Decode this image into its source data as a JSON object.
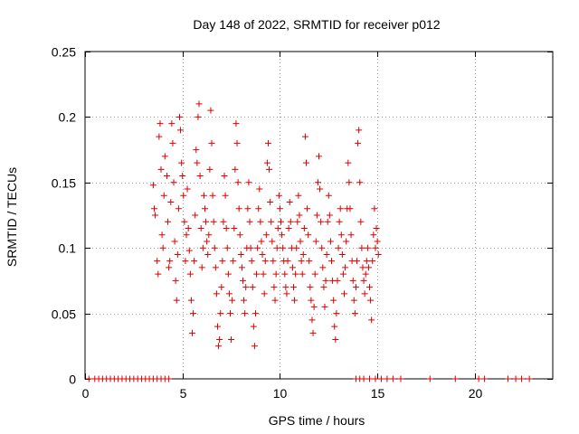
{
  "chart_data": {
    "type": "scatter",
    "title": "Day 148 of 2022, SRMTID for receiver p012",
    "xlabel": "GPS time / hours",
    "ylabel": "SRMTID / TECUs",
    "xlim": [
      0,
      24
    ],
    "ylim": [
      0,
      0.25
    ],
    "x_ticks": [
      0,
      5,
      10,
      15,
      20
    ],
    "x_tick_labels": [
      "0",
      "5",
      "10",
      "15",
      "20"
    ],
    "y_ticks": [
      0,
      0.05,
      0.1,
      0.15,
      0.2,
      0.25
    ],
    "y_tick_labels": [
      "0",
      "0.05",
      "0.1",
      "0.15",
      "0.2",
      "0.25"
    ],
    "grid": true,
    "marker": "+",
    "color": "#dd0000",
    "series": [
      {
        "name": "SRMTID",
        "points": [
          [
            3.5,
            0.148
          ],
          [
            3.55,
            0.13
          ],
          [
            3.6,
            0.125
          ],
          [
            3.7,
            0.09
          ],
          [
            3.75,
            0.08
          ],
          [
            3.8,
            0.185
          ],
          [
            3.85,
            0.195
          ],
          [
            3.9,
            0.16
          ],
          [
            3.95,
            0.11
          ],
          [
            4.0,
            0.1
          ],
          [
            4.05,
            0.14
          ],
          [
            4.1,
            0.17
          ],
          [
            4.2,
            0.155
          ],
          [
            4.25,
            0.12
          ],
          [
            4.3,
            0.085
          ],
          [
            4.35,
            0.09
          ],
          [
            4.4,
            0.135
          ],
          [
            4.45,
            0.195
          ],
          [
            4.5,
            0.18
          ],
          [
            4.55,
            0.15
          ],
          [
            4.6,
            0.105
          ],
          [
            4.65,
            0.075
          ],
          [
            4.7,
            0.06
          ],
          [
            4.75,
            0.095
          ],
          [
            4.8,
            0.13
          ],
          [
            4.85,
            0.2
          ],
          [
            4.9,
            0.19
          ],
          [
            4.95,
            0.165
          ],
          [
            5.0,
            0.155
          ],
          [
            5.05,
            0.14
          ],
          [
            5.1,
            0.12
          ],
          [
            5.15,
            0.09
          ],
          [
            5.2,
            0.11
          ],
          [
            5.25,
            0.145
          ],
          [
            5.3,
            0.115
          ],
          [
            5.35,
            0.098
          ],
          [
            5.4,
            0.08
          ],
          [
            5.45,
            0.06
          ],
          [
            5.5,
            0.035
          ],
          [
            5.55,
            0.05
          ],
          [
            5.6,
            0.09
          ],
          [
            5.65,
            0.125
          ],
          [
            5.7,
            0.175
          ],
          [
            5.75,
            0.165
          ],
          [
            5.8,
            0.2
          ],
          [
            5.85,
            0.21
          ],
          [
            5.9,
            0.155
          ],
          [
            5.95,
            0.115
          ],
          [
            6.0,
            0.085
          ],
          [
            6.05,
            0.1
          ],
          [
            6.1,
            0.14
          ],
          [
            6.15,
            0.13
          ],
          [
            6.2,
            0.12
          ],
          [
            6.25,
            0.105
          ],
          [
            6.3,
            0.095
          ],
          [
            6.35,
            0.11
          ],
          [
            6.4,
            0.16
          ],
          [
            6.45,
            0.205
          ],
          [
            6.5,
            0.18
          ],
          [
            6.55,
            0.14
          ],
          [
            6.6,
            0.12
          ],
          [
            6.65,
            0.1
          ],
          [
            6.7,
            0.085
          ],
          [
            6.75,
            0.065
          ],
          [
            6.8,
            0.04
          ],
          [
            6.85,
            0.025
          ],
          [
            6.9,
            0.03
          ],
          [
            6.95,
            0.05
          ],
          [
            7.0,
            0.07
          ],
          [
            7.05,
            0.09
          ],
          [
            7.1,
            0.12
          ],
          [
            7.15,
            0.155
          ],
          [
            7.2,
            0.14
          ],
          [
            7.25,
            0.115
          ],
          [
            7.3,
            0.1
          ],
          [
            7.35,
            0.08
          ],
          [
            7.4,
            0.065
          ],
          [
            7.45,
            0.05
          ],
          [
            7.5,
            0.03
          ],
          [
            7.55,
            0.06
          ],
          [
            7.6,
            0.09
          ],
          [
            7.65,
            0.115
          ],
          [
            7.7,
            0.16
          ],
          [
            7.75,
            0.195
          ],
          [
            7.8,
            0.18
          ],
          [
            7.85,
            0.15
          ],
          [
            7.9,
            0.13
          ],
          [
            7.95,
            0.11
          ],
          [
            8.0,
            0.095
          ],
          [
            8.05,
            0.085
          ],
          [
            8.1,
            0.075
          ],
          [
            8.15,
            0.06
          ],
          [
            8.2,
            0.05
          ],
          [
            8.25,
            0.07
          ],
          [
            8.3,
            0.1
          ],
          [
            8.35,
            0.13
          ],
          [
            8.4,
            0.15
          ],
          [
            8.45,
            0.12
          ],
          [
            8.5,
            0.1
          ],
          [
            8.55,
            0.09
          ],
          [
            8.6,
            0.07
          ],
          [
            8.65,
            0.04
          ],
          [
            8.7,
            0.025
          ],
          [
            8.75,
            0.05
          ],
          [
            8.8,
            0.08
          ],
          [
            8.85,
            0.1
          ],
          [
            8.9,
            0.13
          ],
          [
            8.95,
            0.145
          ],
          [
            9.0,
            0.12
          ],
          [
            9.05,
            0.105
          ],
          [
            9.1,
            0.095
          ],
          [
            9.15,
            0.08
          ],
          [
            9.2,
            0.065
          ],
          [
            9.25,
            0.09
          ],
          [
            9.3,
            0.11
          ],
          [
            9.35,
            0.165
          ],
          [
            9.4,
            0.18
          ],
          [
            9.45,
            0.16
          ],
          [
            9.5,
            0.135
          ],
          [
            9.55,
            0.12
          ],
          [
            9.6,
            0.105
          ],
          [
            9.65,
            0.09
          ],
          [
            9.7,
            0.07
          ],
          [
            9.75,
            0.06
          ],
          [
            9.8,
            0.08
          ],
          [
            9.85,
            0.1
          ],
          [
            9.9,
            0.115
          ],
          [
            9.95,
            0.14
          ],
          [
            10.0,
            0.13
          ],
          [
            10.05,
            0.12
          ],
          [
            10.1,
            0.11
          ],
          [
            10.15,
            0.1
          ],
          [
            10.2,
            0.09
          ],
          [
            10.25,
            0.08
          ],
          [
            10.3,
            0.07
          ],
          [
            10.35,
            0.065
          ],
          [
            10.4,
            0.09
          ],
          [
            10.45,
            0.115
          ],
          [
            10.5,
            0.135
          ],
          [
            10.55,
            0.12
          ],
          [
            10.6,
            0.1
          ],
          [
            10.65,
            0.085
          ],
          [
            10.7,
            0.07
          ],
          [
            10.75,
            0.06
          ],
          [
            10.8,
            0.08
          ],
          [
            10.85,
            0.1
          ],
          [
            10.9,
            0.12
          ],
          [
            10.95,
            0.14
          ],
          [
            11.0,
            0.125
          ],
          [
            11.05,
            0.105
          ],
          [
            11.1,
            0.09
          ],
          [
            11.15,
            0.08
          ],
          [
            11.2,
            0.095
          ],
          [
            11.25,
            0.115
          ],
          [
            11.3,
            0.185
          ],
          [
            11.35,
            0.165
          ],
          [
            11.4,
            0.13
          ],
          [
            11.45,
            0.11
          ],
          [
            11.5,
            0.09
          ],
          [
            11.55,
            0.07
          ],
          [
            11.6,
            0.06
          ],
          [
            11.65,
            0.045
          ],
          [
            11.7,
            0.035
          ],
          [
            11.75,
            0.055
          ],
          [
            11.8,
            0.08
          ],
          [
            11.85,
            0.105
          ],
          [
            11.9,
            0.125
          ],
          [
            11.95,
            0.15
          ],
          [
            12.0,
            0.17
          ],
          [
            12.05,
            0.145
          ],
          [
            12.1,
            0.12
          ],
          [
            12.15,
            0.1
          ],
          [
            12.2,
            0.085
          ],
          [
            12.25,
            0.07
          ],
          [
            12.3,
            0.055
          ],
          [
            12.35,
            0.075
          ],
          [
            12.4,
            0.095
          ],
          [
            12.45,
            0.12
          ],
          [
            12.5,
            0.14
          ],
          [
            12.55,
            0.125
          ],
          [
            12.6,
            0.105
          ],
          [
            12.65,
            0.09
          ],
          [
            12.7,
            0.075
          ],
          [
            12.75,
            0.06
          ],
          [
            12.8,
            0.04
          ],
          [
            12.85,
            0.03
          ],
          [
            12.9,
            0.05
          ],
          [
            12.95,
            0.075
          ],
          [
            13.0,
            0.1
          ],
          [
            13.05,
            0.12
          ],
          [
            13.1,
            0.13
          ],
          [
            13.15,
            0.11
          ],
          [
            13.2,
            0.095
          ],
          [
            13.25,
            0.08
          ],
          [
            13.3,
            0.065
          ],
          [
            13.35,
            0.085
          ],
          [
            13.4,
            0.105
          ],
          [
            13.45,
            0.13
          ],
          [
            13.5,
            0.165
          ],
          [
            13.55,
            0.15
          ],
          [
            13.6,
            0.13
          ],
          [
            13.65,
            0.11
          ],
          [
            13.7,
            0.09
          ],
          [
            13.75,
            0.075
          ],
          [
            13.8,
            0.06
          ],
          [
            13.85,
            0.05
          ],
          [
            13.9,
            0.07
          ],
          [
            13.95,
            0.09
          ],
          [
            14.0,
            0.18
          ],
          [
            14.05,
            0.19
          ],
          [
            14.1,
            0.15
          ],
          [
            14.15,
            0.12
          ],
          [
            14.2,
            0.1
          ],
          [
            14.25,
            0.085
          ],
          [
            14.3,
            0.075
          ],
          [
            14.35,
            0.065
          ],
          [
            14.4,
            0.08
          ],
          [
            14.45,
            0.09
          ],
          [
            14.5,
            0.1
          ],
          [
            14.55,
            0.085
          ],
          [
            14.6,
            0.07
          ],
          [
            14.65,
            0.06
          ],
          [
            14.7,
            0.045
          ],
          [
            14.75,
            0.09
          ],
          [
            14.8,
            0.11
          ],
          [
            14.85,
            0.13
          ],
          [
            14.9,
            0.1
          ],
          [
            14.95,
            0.115
          ],
          [
            15.0,
            0.105
          ],
          [
            15.05,
            0.095
          ],
          [
            0.2,
            0
          ],
          [
            0.5,
            0
          ],
          [
            0.7,
            0
          ],
          [
            0.9,
            0
          ],
          [
            1.1,
            0
          ],
          [
            1.3,
            0
          ],
          [
            1.5,
            0
          ],
          [
            1.7,
            0
          ],
          [
            1.9,
            0
          ],
          [
            2.1,
            0
          ],
          [
            2.3,
            0
          ],
          [
            2.5,
            0
          ],
          [
            2.7,
            0
          ],
          [
            2.9,
            0
          ],
          [
            3.1,
            0
          ],
          [
            3.3,
            0
          ],
          [
            3.5,
            0
          ],
          [
            3.7,
            0
          ],
          [
            3.9,
            0
          ],
          [
            4.1,
            0
          ],
          [
            4.3,
            0
          ],
          [
            13.9,
            0
          ],
          [
            14.1,
            0
          ],
          [
            14.3,
            0
          ],
          [
            14.6,
            0
          ],
          [
            14.9,
            0
          ],
          [
            15.2,
            0
          ],
          [
            15.5,
            0
          ],
          [
            15.8,
            0
          ],
          [
            16.2,
            0
          ],
          [
            17.7,
            0
          ],
          [
            19.0,
            0
          ],
          [
            20.2,
            0
          ],
          [
            20.5,
            0
          ],
          [
            21.7,
            0
          ],
          [
            22.1,
            0
          ],
          [
            22.4,
            0
          ],
          [
            22.8,
            0
          ]
        ]
      }
    ]
  }
}
